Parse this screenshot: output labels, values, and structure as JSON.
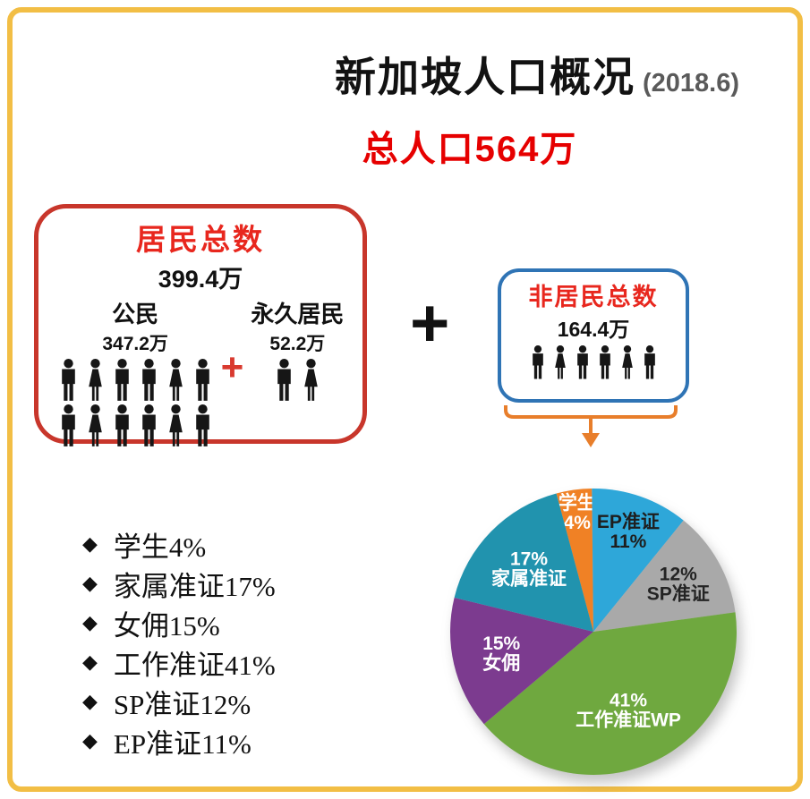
{
  "header": {
    "title": "新加坡人口概况",
    "date": "(2018.6)",
    "subtitle": "总人口564万"
  },
  "residents_box": {
    "title": "居民总数",
    "total": "399.4万",
    "citizens": {
      "label": "公民",
      "value": "347.2万",
      "icon_rows": [
        [
          "m",
          "f",
          "m",
          "m",
          "f",
          "m"
        ],
        [
          "m",
          "f",
          "m",
          "m",
          "f",
          "m"
        ]
      ]
    },
    "plus": "+",
    "permanent_residents": {
      "label": "永久居民",
      "value": "52.2万",
      "icon_rows": [
        [
          "m",
          "f"
        ]
      ]
    }
  },
  "big_plus": "+",
  "nonresidents_box": {
    "title": "非居民总数",
    "total": "164.4万",
    "icon_rows": [
      [
        "m",
        "f",
        "m",
        "m",
        "f",
        "m"
      ]
    ]
  },
  "legend": {
    "bullet": "◆",
    "items": [
      "学生4%",
      "家属准证17%",
      "女佣15%",
      "工作准证41%",
      "SP准证12%",
      "EP准证11%"
    ]
  },
  "chart_data": {
    "type": "pie",
    "start_angle_deg": -15,
    "direction": "clockwise",
    "unit": "%",
    "legend_position": "left-list",
    "slices": [
      {
        "label": "学生",
        "value": 4,
        "color": "#F08125",
        "text_color": "#FFFFFF",
        "label_lines": [
          "学生",
          "4%"
        ],
        "label_radius": 0.84
      },
      {
        "label": "EP准证",
        "value": 11,
        "color": "#2EA7D9",
        "text_color": "#1E1E1E",
        "label_lines": [
          "EP准证",
          "11%"
        ],
        "label_radius": 0.74
      },
      {
        "label": "SP准证",
        "value": 12,
        "color": "#A9A9A9",
        "text_color": "#242424",
        "label_lines": [
          "12%",
          "SP准证"
        ],
        "label_radius": 0.68
      },
      {
        "label": "工作准证WP",
        "value": 41,
        "color": "#6FA83F",
        "text_color": "#FFFFFF",
        "label_lines": [
          "41%",
          "工作准证WP"
        ],
        "label_radius": 0.6
      },
      {
        "label": "女佣",
        "value": 15,
        "color": "#7C3B8F",
        "text_color": "#FFFFFF",
        "label_lines": [
          "15%",
          "女佣"
        ],
        "label_radius": 0.66
      },
      {
        "label": "家属准证",
        "value": 17,
        "color": "#2193AE",
        "text_color": "#FFFFFF",
        "label_lines": [
          "17%",
          "家属准证"
        ],
        "label_radius": 0.63
      }
    ]
  }
}
